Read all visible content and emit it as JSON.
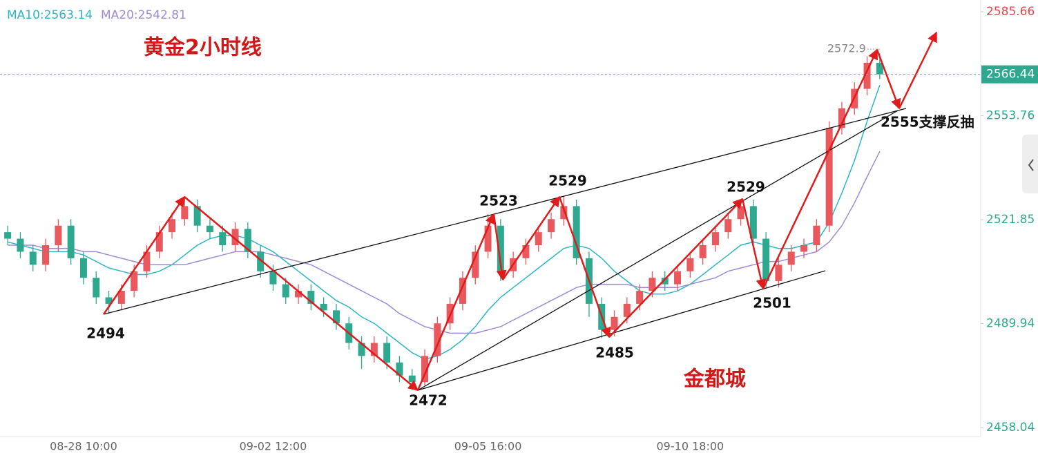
{
  "chart_data": {
    "type": "candlestick",
    "legend": [
      {
        "text": "MA10:2563.14",
        "color": "#2bb5c8"
      },
      {
        "text": "MA20:2542.81",
        "color": "#a08ad8"
      }
    ],
    "categories": [
      null,
      null,
      null,
      null,
      null,
      null,
      "08-28 10:00",
      null,
      null,
      null,
      null,
      null,
      null,
      null,
      null,
      null,
      null,
      null,
      null,
      null,
      null,
      "09-02 12:00",
      null,
      null,
      null,
      null,
      null,
      null,
      null,
      null,
      null,
      null,
      null,
      null,
      null,
      null,
      null,
      null,
      "09-05 16:00",
      null,
      null,
      null,
      null,
      null,
      null,
      null,
      null,
      null,
      null,
      null,
      null,
      null,
      null,
      null,
      "09-10 18:00",
      null,
      null,
      null,
      null,
      null,
      null,
      null,
      null,
      null,
      null,
      null,
      null,
      null,
      null,
      null
    ],
    "open": [
      2518,
      2516,
      2512,
      2508,
      2514,
      2520,
      2510,
      2504,
      2498,
      2496,
      2500,
      2506,
      2512,
      2518,
      2522,
      2526,
      2520,
      2518,
      2514,
      2519,
      2512,
      2506,
      2502,
      2498,
      2500,
      2496,
      2494,
      2490,
      2484,
      2480,
      2484,
      2478,
      2474,
      2472,
      2480,
      2490,
      2496,
      2504,
      2512,
      2520,
      2506,
      2510,
      2514,
      2518,
      2522,
      2526,
      2510,
      2496,
      2488,
      2492,
      2496,
      2500,
      2504,
      2502,
      2506,
      2510,
      2514,
      2518,
      2522,
      2526,
      2516,
      2503,
      2508,
      2512,
      2514,
      2520,
      2550,
      2556,
      2562,
      2570
    ],
    "high": [
      2520,
      2518,
      2514,
      2516,
      2522,
      2522,
      2512,
      2506,
      2500,
      2502,
      2508,
      2514,
      2520,
      2524,
      2529,
      2528,
      2522,
      2520,
      2521,
      2521,
      2514,
      2508,
      2504,
      2502,
      2502,
      2498,
      2496,
      2492,
      2486,
      2486,
      2486,
      2480,
      2476,
      2482,
      2492,
      2498,
      2506,
      2514,
      2523.5,
      2522,
      2512,
      2516,
      2520,
      2524,
      2529,
      2528,
      2512,
      2498,
      2494,
      2498,
      2502,
      2506,
      2506,
      2508,
      2512,
      2516,
      2520,
      2524,
      2528,
      2528,
      2518,
      2510,
      2514,
      2516,
      2522,
      2552,
      2558,
      2564,
      2572,
      2572.9
    ],
    "low": [
      2514,
      2510,
      2506,
      2506,
      2512,
      2508,
      2502,
      2496,
      2493,
      2494,
      2498,
      2504,
      2510,
      2516,
      2520,
      2518,
      2516,
      2512,
      2512,
      2510,
      2504,
      2500,
      2496,
      2496,
      2494,
      2492,
      2488,
      2482,
      2476,
      2478,
      2476,
      2472,
      2469.5,
      2471,
      2478,
      2488,
      2494,
      2502,
      2510,
      2503,
      2504,
      2508,
      2512,
      2516,
      2520,
      2508,
      2492,
      2485.5,
      2486,
      2490,
      2494,
      2498,
      2500,
      2500,
      2504,
      2508,
      2512,
      2516,
      2520,
      2514,
      2501,
      2501,
      2506,
      2510,
      2512,
      2518,
      2548,
      2554,
      2560,
      2565
    ],
    "close": [
      2516,
      2512,
      2508,
      2514,
      2520,
      2510,
      2504,
      2498,
      2496,
      2500,
      2506,
      2512,
      2518,
      2522,
      2526,
      2520,
      2518,
      2514,
      2519,
      2512,
      2506,
      2502,
      2498,
      2500,
      2496,
      2494,
      2490,
      2484,
      2480,
      2484,
      2478,
      2474,
      2472,
      2480,
      2490,
      2496,
      2504,
      2512,
      2520,
      2506,
      2510,
      2514,
      2518,
      2522,
      2526,
      2510,
      2496,
      2488,
      2492,
      2496,
      2500,
      2504,
      2502,
      2506,
      2510,
      2514,
      2518,
      2522,
      2526,
      2516,
      2503,
      2508,
      2512,
      2514,
      2520,
      2550,
      2556,
      2562,
      2570,
      2566.44
    ],
    "up_color": "#e8585c",
    "down_color": "#2fa890",
    "series": [
      {
        "color": "#2bb5c8",
        "values": [
          2515,
          2514,
          2513,
          2512,
          2512,
          2512,
          2511,
          2509,
          2507,
          2506,
          2505,
          2505,
          2506,
          2508,
          2511,
          2514,
          2516,
          2517,
          2517,
          2516,
          2514,
          2512,
          2509,
          2506,
          2503,
          2500,
          2497,
          2495,
          2492,
          2490,
          2487,
          2484,
          2481,
          2479,
          2480,
          2482,
          2485,
          2489,
          2494,
          2498,
          2501,
          2504,
          2507,
          2510,
          2513,
          2514,
          2513,
          2510,
          2506,
          2503,
          2500,
          2499,
          2499,
          2500,
          2502,
          2505,
          2508,
          2511,
          2514,
          2515,
          2514,
          2513,
          2513,
          2514,
          2515,
          2521,
          2530,
          2540,
          2552,
          2563.14
        ]
      },
      {
        "color": "#a08ad8",
        "values": [
          2514,
          2514,
          2514,
          2513,
          2513,
          2513,
          2512,
          2512,
          2511,
          2510,
          2509,
          2508,
          2508,
          2508,
          2508,
          2509,
          2510,
          2511,
          2512,
          2512,
          2512,
          2511,
          2510,
          2509,
          2508,
          2506,
          2504,
          2502,
          2500,
          2498,
          2496,
          2493,
          2491,
          2489,
          2488,
          2487,
          2487,
          2487,
          2488,
          2489,
          2491,
          2493,
          2495,
          2497,
          2499,
          2501,
          2502,
          2502,
          2502,
          2502,
          2501,
          2501,
          2501,
          2501,
          2502,
          2503,
          2504,
          2506,
          2507,
          2508,
          2509,
          2509,
          2510,
          2511,
          2512,
          2515,
          2520,
          2527,
          2535,
          2542.81
        ]
      }
    ],
    "ylim": [
      2455.28,
      2589.26
    ],
    "yticks": [
      2585.66,
      2553.76,
      2521.85,
      2489.94,
      2458.04
    ],
    "current_price": 2566.44,
    "high_marker": 2572.9,
    "annotations": [
      "黄金2小时线",
      "金都城",
      "2494",
      "2523",
      "2529",
      "2529",
      "2472",
      "2485",
      "2501",
      "2555支撑反抽"
    ]
  }
}
